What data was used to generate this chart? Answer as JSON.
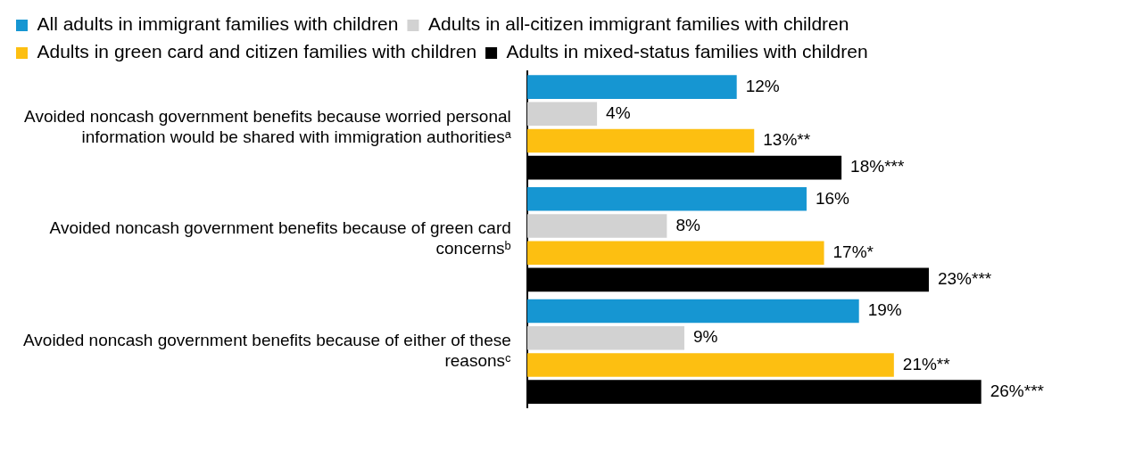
{
  "chart_data": {
    "type": "bar",
    "orientation": "horizontal",
    "legend": "top",
    "data_labels": false,
    "categories": [
      "Avoided noncash government benefits because worried personal information would be shared with immigration authoritiesᵃ",
      "Avoided noncash government benefits because of green card concernsᵇ",
      "Avoided noncash government benefits because of either of these reasonsᶜ"
    ],
    "series": [
      {
        "name": "All adults in immigrant families with children",
        "color": "#1696d2",
        "values": [
          12,
          16,
          19
        ],
        "value_labels": [
          "12%",
          "16%",
          "19%"
        ]
      },
      {
        "name": "Adults in all-citizen immigrant families with children",
        "color": "#d2d2d2",
        "values": [
          4,
          8,
          9
        ],
        "value_labels": [
          "4%",
          "8%",
          "9%"
        ]
      },
      {
        "name": "Adults in green card and citizen families with children",
        "color": "#fdbf11",
        "values": [
          13,
          17,
          21
        ],
        "value_labels": [
          "13%**",
          "17%*",
          "21%**"
        ]
      },
      {
        "name": "Adults in mixed-status families with children",
        "color": "#000000",
        "values": [
          18,
          23,
          26
        ],
        "value_labels": [
          "18%***",
          "23%***",
          "26%***"
        ]
      }
    ]
  }
}
